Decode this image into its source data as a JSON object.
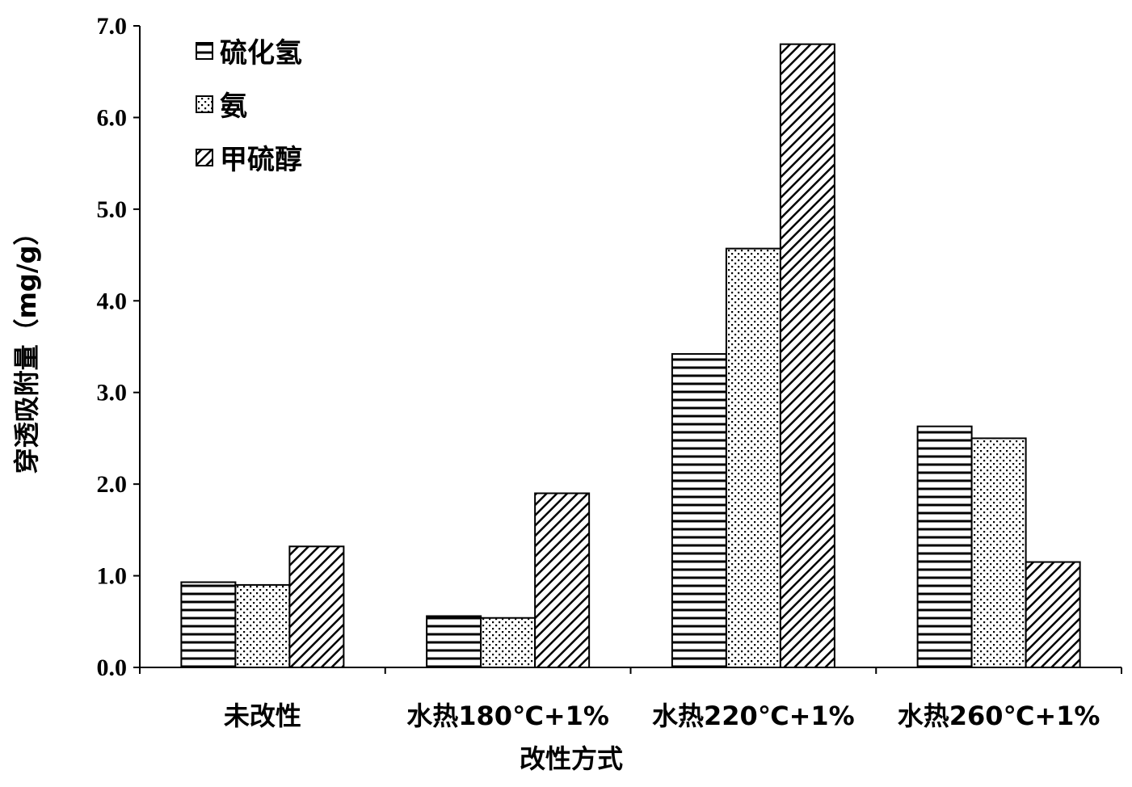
{
  "chart_data": {
    "type": "bar",
    "categories": [
      "未改性",
      "水热180℃+1%",
      "水热220℃+1%",
      "水热260℃+1%"
    ],
    "series": [
      {
        "name": "硫化氢",
        "values": [
          0.93,
          0.56,
          3.42,
          2.63
        ],
        "pattern": "horizontal-lines"
      },
      {
        "name": "氨",
        "values": [
          0.9,
          0.54,
          4.57,
          2.5
        ],
        "pattern": "dots"
      },
      {
        "name": "甲硫醇",
        "values": [
          1.32,
          1.9,
          6.8,
          1.15
        ],
        "pattern": "diagonal-lines"
      }
    ],
    "xlabel": "改性方式",
    "ylabel": "穿透吸附量（mg/g）",
    "ylim": [
      0,
      7
    ],
    "yticks": [
      "0.0",
      "1.0",
      "2.0",
      "3.0",
      "4.0",
      "5.0",
      "6.0",
      "7.0"
    ],
    "legend_position": "top-left",
    "grid": false
  }
}
